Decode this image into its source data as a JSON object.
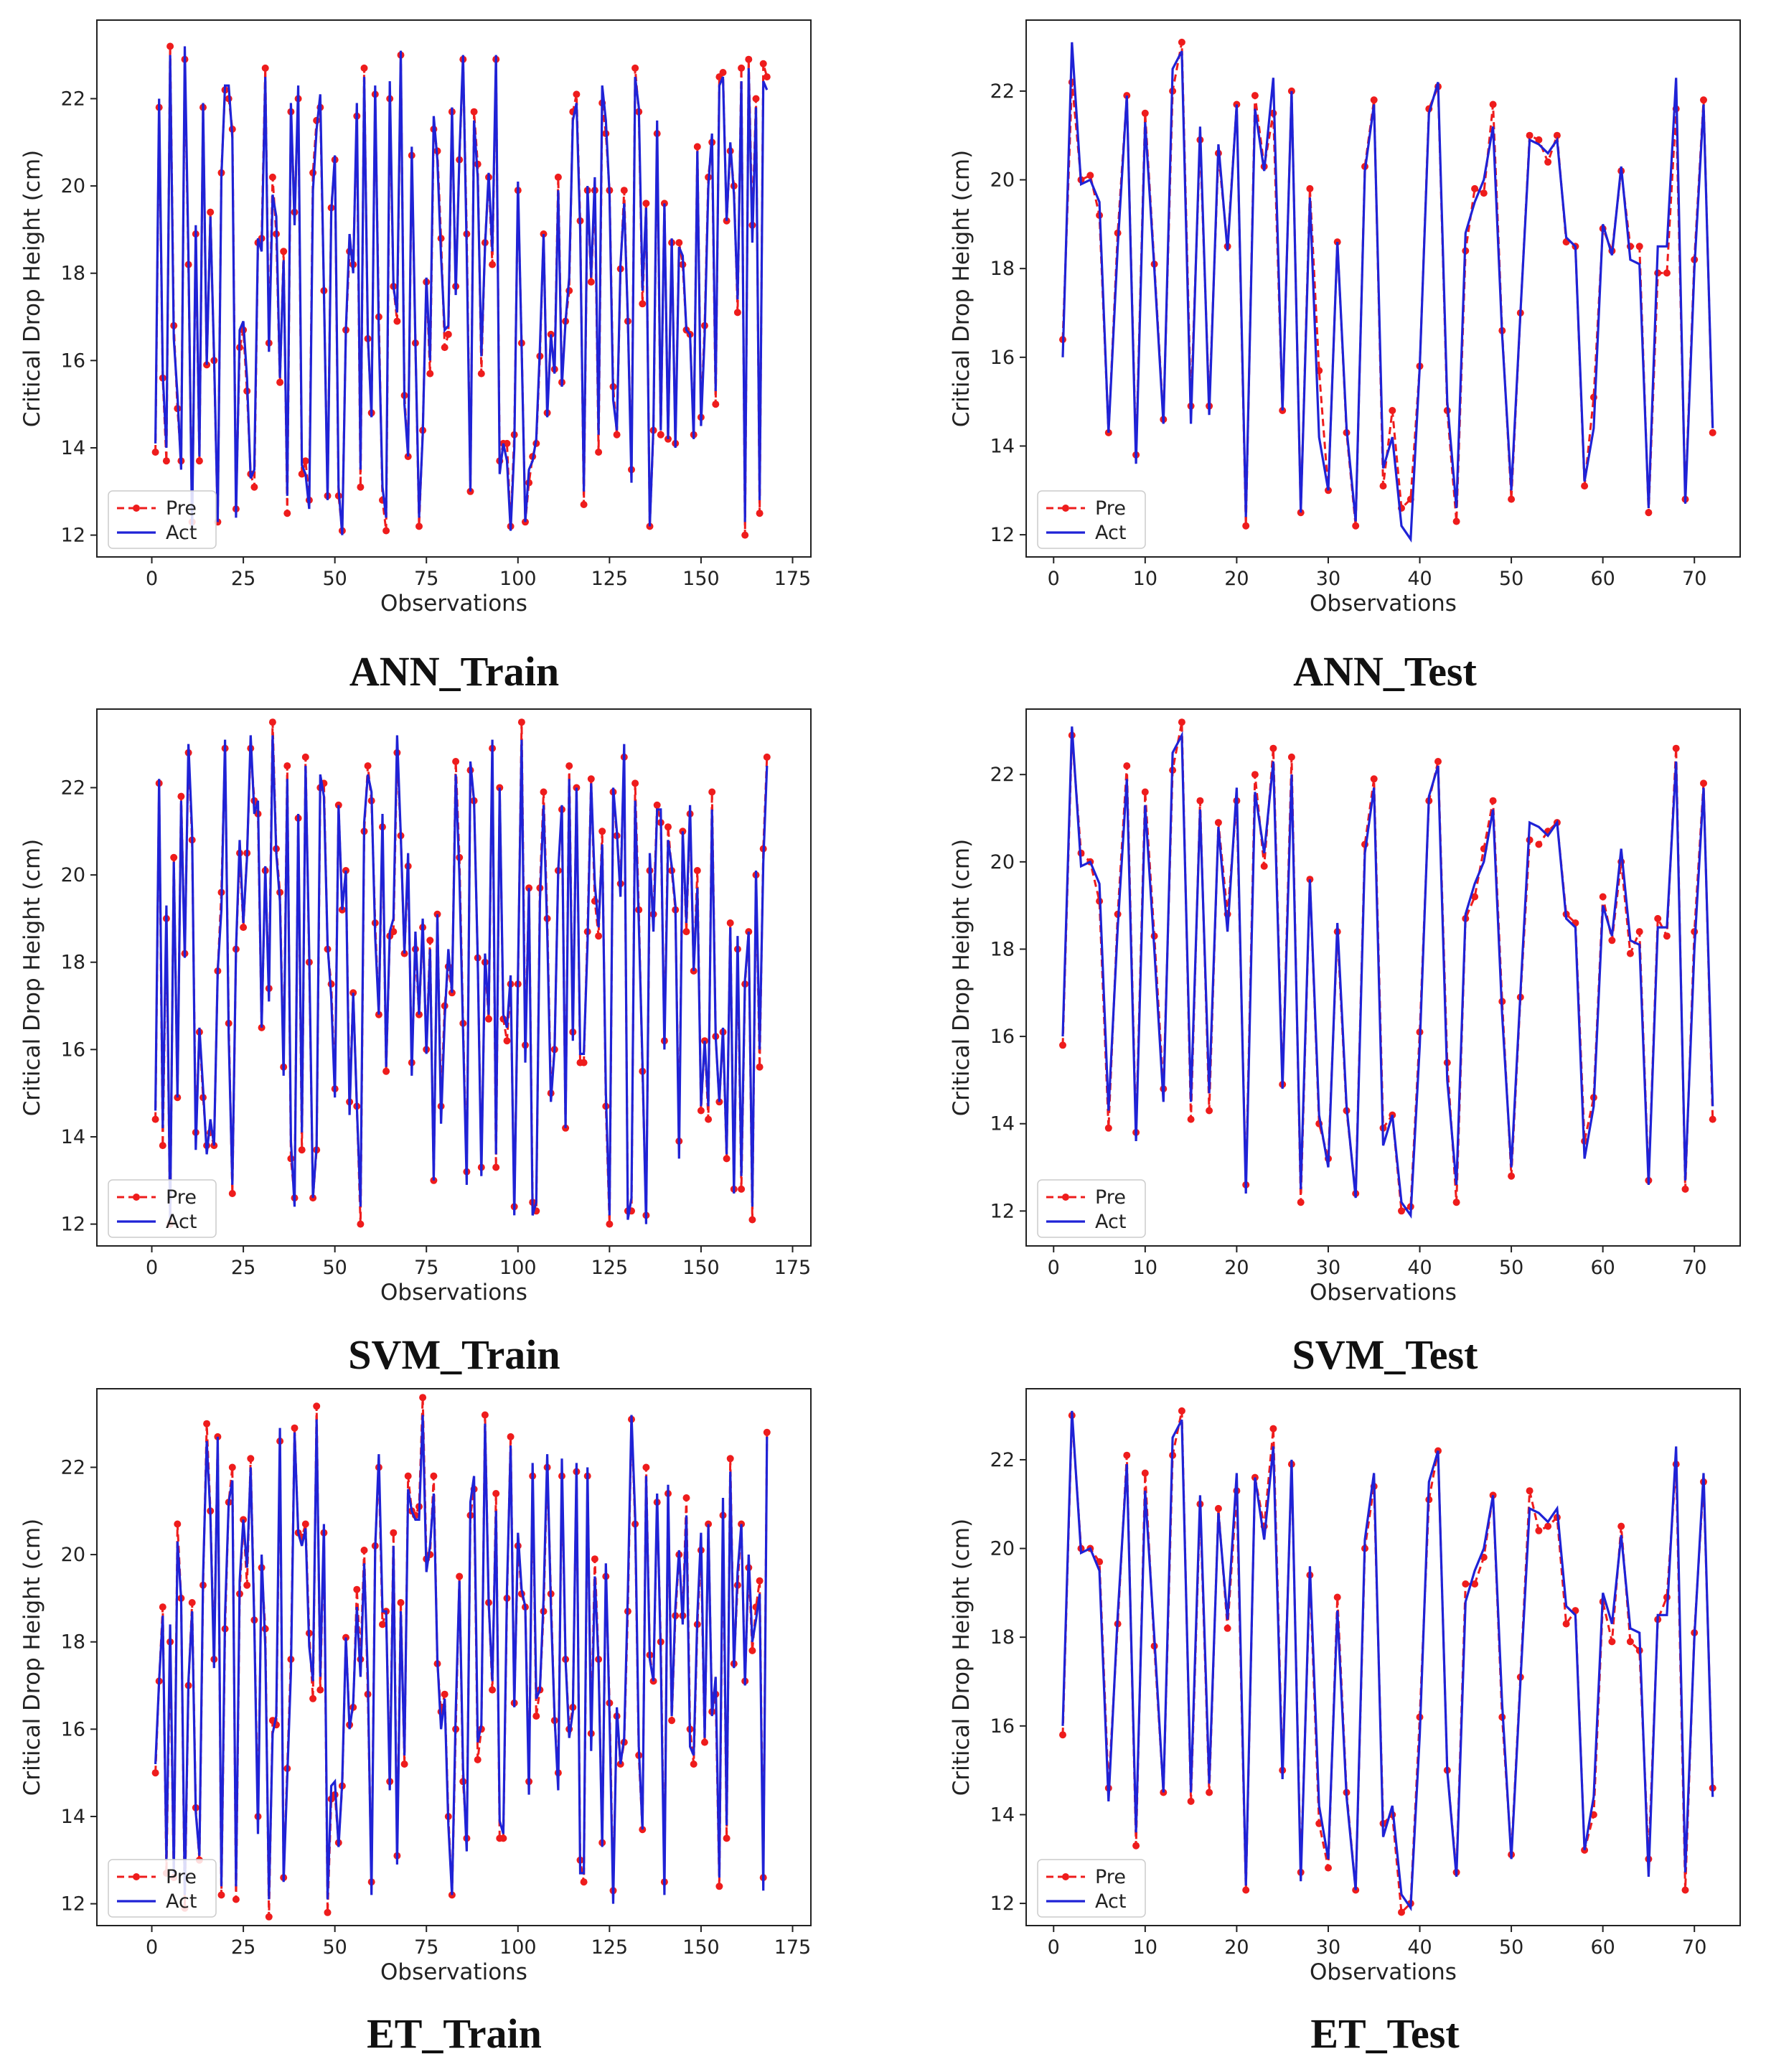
{
  "figure": {
    "captions": [
      "ANN_Train",
      "ANN_Test",
      "SVM_Train",
      "SVM_Test",
      "ET_Train",
      "ET_Test"
    ]
  },
  "colors": {
    "pre": "#ee1c1c",
    "act": "#1f22d6",
    "axis": "#222222"
  },
  "chart_data": [
    {
      "type": "line",
      "title": "ANN_Train",
      "xlabel": "Observations",
      "ylabel": "Critical Drop Height (cm)",
      "xlim": [
        -15,
        180
      ],
      "ylim": [
        11.5,
        23.8
      ],
      "xticks": [
        0,
        25,
        50,
        75,
        100,
        125,
        150,
        175
      ],
      "yticks": [
        12,
        14,
        16,
        18,
        20,
        22
      ],
      "legend": [
        "Pre",
        "Act"
      ],
      "legend_loc": "lower-left",
      "kind": "train",
      "model_seed": 11
    },
    {
      "type": "line",
      "title": "ANN_Test",
      "xlabel": "Observations",
      "ylabel": "Critical Drop Height (cm)",
      "xlim": [
        -3,
        75
      ],
      "ylim": [
        11.5,
        23.6
      ],
      "xticks": [
        0,
        10,
        20,
        30,
        40,
        50,
        60,
        70
      ],
      "yticks": [
        12,
        14,
        16,
        18,
        20,
        22
      ],
      "legend": [
        "Pre",
        "Act"
      ],
      "legend_loc": "lower-left",
      "kind": "test",
      "model_seed": 21,
      "actual": [
        16.0,
        23.1,
        19.9,
        20.0,
        19.5,
        14.3,
        18.5,
        21.9,
        13.6,
        21.3,
        18.0,
        14.5,
        22.5,
        22.9,
        14.5,
        21.2,
        14.7,
        20.8,
        18.4,
        21.7,
        12.4,
        21.6,
        20.2,
        22.3,
        14.8,
        22.0,
        12.5,
        19.6,
        14.2,
        13.0,
        18.6,
        14.4,
        12.3,
        20.2,
        21.7,
        13.5,
        14.2,
        12.2,
        11.9,
        15.8,
        21.5,
        22.2,
        15.0,
        12.6,
        18.8,
        19.5,
        20.0,
        21.2,
        16.5,
        13.0,
        17.0,
        20.9,
        20.8,
        20.6,
        20.9,
        18.7,
        18.5,
        13.2,
        14.4,
        19.0,
        18.3,
        20.3,
        18.2,
        18.1,
        12.6,
        18.5,
        18.5,
        22.3,
        12.7,
        18.0,
        21.7,
        14.4
      ],
      "predicted": [
        16.4,
        22.2,
        20.0,
        20.1,
        19.2,
        14.3,
        18.8,
        21.9,
        13.8,
        21.5,
        18.1,
        14.6,
        22.0,
        23.1,
        14.9,
        20.9,
        14.9,
        20.6,
        18.5,
        21.7,
        12.2,
        21.9,
        20.3,
        21.5,
        14.8,
        22.0,
        12.5,
        19.8,
        15.7,
        13.0,
        18.6,
        14.3,
        12.2,
        20.3,
        21.8,
        13.1,
        14.8,
        12.6,
        12.8,
        15.8,
        21.6,
        22.1,
        14.8,
        12.3,
        18.4,
        19.8,
        19.7,
        21.7,
        16.6,
        12.8,
        17.0,
        21.0,
        20.9,
        20.4,
        21.0,
        18.6,
        18.5,
        13.1,
        15.1,
        18.9,
        18.4,
        20.2,
        18.5,
        18.5,
        12.5,
        17.9,
        17.9,
        21.6,
        12.8,
        18.2,
        21.8,
        14.3
      ]
    },
    {
      "type": "line",
      "title": "SVM_Train",
      "xlabel": "Observations",
      "ylabel": "Critical Drop Height (cm)",
      "xlim": [
        -15,
        180
      ],
      "ylim": [
        11.5,
        23.8
      ],
      "xticks": [
        0,
        25,
        50,
        75,
        100,
        125,
        150,
        175
      ],
      "yticks": [
        12,
        14,
        16,
        18,
        20,
        22
      ],
      "legend": [
        "Pre",
        "Act"
      ],
      "legend_loc": "lower-left",
      "kind": "train",
      "model_seed": 12
    },
    {
      "type": "line",
      "title": "SVM_Test",
      "xlabel": "Observations",
      "ylabel": "Critical Drop Height (cm)",
      "xlim": [
        -3,
        75
      ],
      "ylim": [
        11.2,
        23.5
      ],
      "xticks": [
        0,
        10,
        20,
        30,
        40,
        50,
        60,
        70
      ],
      "yticks": [
        12,
        14,
        16,
        18,
        20,
        22
      ],
      "legend": [
        "Pre",
        "Act"
      ],
      "legend_loc": "lower-left",
      "kind": "test",
      "model_seed": 22
    },
    {
      "type": "line",
      "title": "ET_Train",
      "xlabel": "Observations",
      "ylabel": "Critical Drop Height (cm)",
      "xlim": [
        -15,
        180
      ],
      "ylim": [
        11.5,
        23.8
      ],
      "xticks": [
        0,
        25,
        50,
        75,
        100,
        125,
        150,
        175
      ],
      "yticks": [
        12,
        14,
        16,
        18,
        20,
        22
      ],
      "legend": [
        "Pre",
        "Act"
      ],
      "legend_loc": "lower-left",
      "kind": "train",
      "model_seed": 13
    },
    {
      "type": "line",
      "title": "ET_Test",
      "xlabel": "Observations",
      "ylabel": "Critical Drop Height (cm)",
      "xlim": [
        -3,
        75
      ],
      "ylim": [
        11.5,
        23.6
      ],
      "xticks": [
        0,
        10,
        20,
        30,
        40,
        50,
        60,
        70
      ],
      "yticks": [
        12,
        14,
        16,
        18,
        20,
        22
      ],
      "legend": [
        "Pre",
        "Act"
      ],
      "legend_loc": "lower-left",
      "kind": "test",
      "model_seed": 23
    }
  ]
}
